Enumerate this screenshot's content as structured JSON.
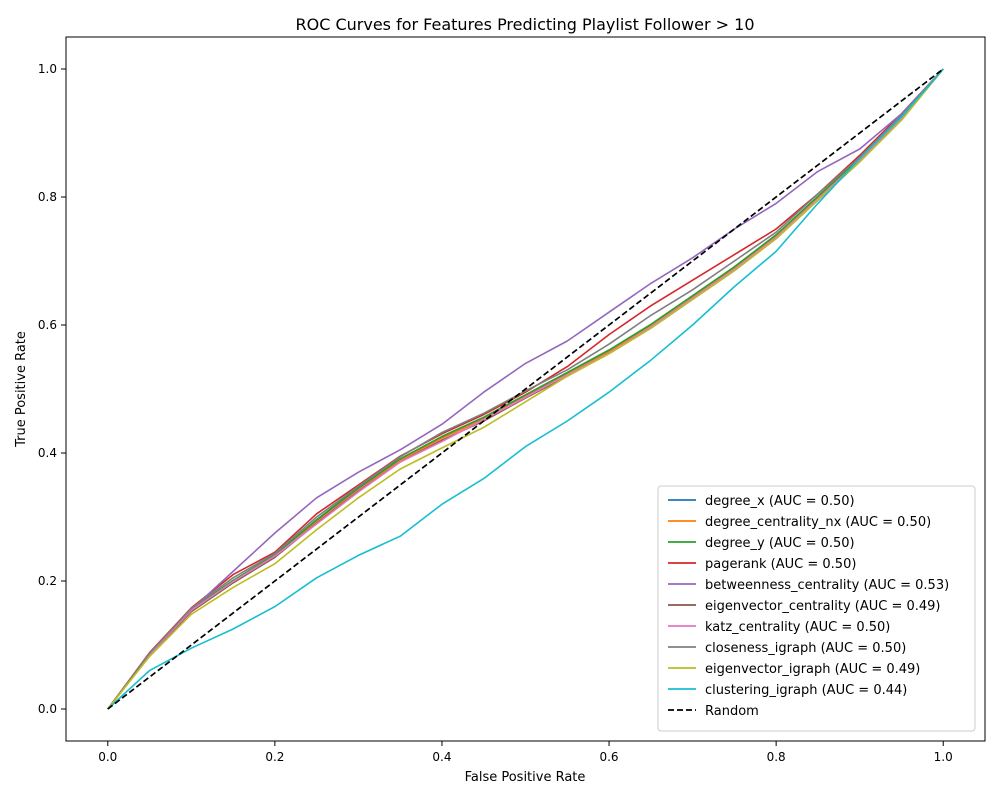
{
  "chart_data": {
    "type": "line",
    "title": "ROC Curves for Features Predicting Playlist Follower > 10",
    "xlabel": "False Positive Rate",
    "ylabel": "True Positive Rate",
    "xlim": [
      -0.05,
      1.05
    ],
    "ylim": [
      -0.05,
      1.05
    ],
    "xticks": [
      "0.0",
      "0.2",
      "0.4",
      "0.6",
      "0.8",
      "1.0"
    ],
    "yticks": [
      "0.0",
      "0.2",
      "0.4",
      "0.6",
      "0.8",
      "1.0"
    ],
    "grid": false,
    "legend_position": "lower-right",
    "series": [
      {
        "name": "degree_x (AUC = 0.50)",
        "color": "#1f77b4",
        "dashed": false,
        "x": [
          0,
          0.05,
          0.1,
          0.15,
          0.2,
          0.25,
          0.3,
          0.35,
          0.4,
          0.45,
          0.5,
          0.55,
          0.6,
          0.65,
          0.7,
          0.75,
          0.8,
          0.85,
          0.9,
          0.95,
          1.0
        ],
        "y": [
          0,
          0.085,
          0.155,
          0.2,
          0.24,
          0.295,
          0.345,
          0.39,
          0.425,
          0.455,
          0.49,
          0.525,
          0.56,
          0.6,
          0.645,
          0.69,
          0.74,
          0.8,
          0.86,
          0.925,
          1.0
        ]
      },
      {
        "name": "degree_centrality_nx (AUC = 0.50)",
        "color": "#ff7f0e",
        "dashed": false,
        "x": [
          0,
          0.05,
          0.1,
          0.15,
          0.2,
          0.25,
          0.3,
          0.35,
          0.4,
          0.45,
          0.5,
          0.55,
          0.6,
          0.65,
          0.7,
          0.75,
          0.8,
          0.85,
          0.9,
          0.95,
          1.0
        ],
        "y": [
          0,
          0.084,
          0.153,
          0.198,
          0.238,
          0.292,
          0.342,
          0.388,
          0.423,
          0.453,
          0.488,
          0.523,
          0.558,
          0.598,
          0.643,
          0.688,
          0.738,
          0.798,
          0.858,
          0.923,
          1.0
        ]
      },
      {
        "name": "degree_y (AUC = 0.50)",
        "color": "#2ca02c",
        "dashed": false,
        "x": [
          0,
          0.05,
          0.1,
          0.15,
          0.2,
          0.25,
          0.3,
          0.35,
          0.4,
          0.45,
          0.5,
          0.55,
          0.6,
          0.65,
          0.7,
          0.75,
          0.8,
          0.85,
          0.9,
          0.95,
          1.0
        ],
        "y": [
          0,
          0.086,
          0.156,
          0.201,
          0.241,
          0.296,
          0.346,
          0.391,
          0.426,
          0.456,
          0.491,
          0.526,
          0.561,
          0.601,
          0.646,
          0.691,
          0.741,
          0.801,
          0.861,
          0.926,
          1.0
        ]
      },
      {
        "name": "pagerank (AUC = 0.50)",
        "color": "#d62728",
        "dashed": false,
        "x": [
          0,
          0.05,
          0.1,
          0.15,
          0.2,
          0.25,
          0.3,
          0.35,
          0.4,
          0.45,
          0.5,
          0.55,
          0.6,
          0.65,
          0.7,
          0.75,
          0.8,
          0.85,
          0.9,
          0.95,
          1.0
        ],
        "y": [
          0,
          0.088,
          0.158,
          0.21,
          0.245,
          0.305,
          0.35,
          0.395,
          0.43,
          0.46,
          0.495,
          0.535,
          0.585,
          0.63,
          0.67,
          0.71,
          0.75,
          0.805,
          0.865,
          0.93,
          1.0
        ]
      },
      {
        "name": "betweenness_centrality (AUC = 0.53)",
        "color": "#9467bd",
        "dashed": false,
        "x": [
          0,
          0.05,
          0.1,
          0.15,
          0.2,
          0.25,
          0.3,
          0.35,
          0.4,
          0.45,
          0.5,
          0.55,
          0.6,
          0.65,
          0.7,
          0.75,
          0.8,
          0.85,
          0.9,
          0.95,
          1.0
        ],
        "y": [
          0,
          0.085,
          0.155,
          0.215,
          0.275,
          0.33,
          0.37,
          0.405,
          0.445,
          0.495,
          0.54,
          0.575,
          0.62,
          0.665,
          0.705,
          0.75,
          0.79,
          0.84,
          0.875,
          0.93,
          1.0
        ]
      },
      {
        "name": "eigenvector_centrality (AUC = 0.49)",
        "color": "#8c564b",
        "dashed": false,
        "x": [
          0,
          0.05,
          0.1,
          0.15,
          0.2,
          0.25,
          0.3,
          0.35,
          0.4,
          0.45,
          0.5,
          0.55,
          0.6,
          0.65,
          0.7,
          0.75,
          0.8,
          0.85,
          0.9,
          0.95,
          1.0
        ],
        "y": [
          0,
          0.084,
          0.152,
          0.197,
          0.237,
          0.29,
          0.34,
          0.386,
          0.42,
          0.45,
          0.486,
          0.52,
          0.556,
          0.595,
          0.64,
          0.685,
          0.735,
          0.795,
          0.855,
          0.921,
          1.0
        ]
      },
      {
        "name": "katz_centrality (AUC = 0.50)",
        "color": "#e377c2",
        "dashed": false,
        "x": [
          0,
          0.05,
          0.1,
          0.15,
          0.2,
          0.25,
          0.3,
          0.35,
          0.4,
          0.45,
          0.5,
          0.55,
          0.6,
          0.65,
          0.7,
          0.75,
          0.8,
          0.85,
          0.9,
          0.95,
          1.0
        ],
        "y": [
          0,
          0.085,
          0.154,
          0.199,
          0.239,
          0.289,
          0.339,
          0.386,
          0.418,
          0.452,
          0.487,
          0.522,
          0.556,
          0.597,
          0.642,
          0.687,
          0.737,
          0.797,
          0.857,
          0.922,
          1.0
        ]
      },
      {
        "name": "closeness_igraph (AUC = 0.50)",
        "color": "#7f7f7f",
        "dashed": false,
        "x": [
          0,
          0.05,
          0.1,
          0.15,
          0.2,
          0.25,
          0.3,
          0.35,
          0.4,
          0.45,
          0.5,
          0.55,
          0.6,
          0.65,
          0.7,
          0.75,
          0.8,
          0.85,
          0.9,
          0.95,
          1.0
        ],
        "y": [
          0,
          0.087,
          0.157,
          0.205,
          0.243,
          0.3,
          0.348,
          0.394,
          0.432,
          0.462,
          0.497,
          0.53,
          0.57,
          0.615,
          0.655,
          0.7,
          0.745,
          0.805,
          0.862,
          0.928,
          1.0
        ]
      },
      {
        "name": "eigenvector_igraph (AUC = 0.49)",
        "color": "#bcbd22",
        "dashed": false,
        "x": [
          0,
          0.05,
          0.1,
          0.15,
          0.2,
          0.25,
          0.3,
          0.35,
          0.4,
          0.45,
          0.5,
          0.55,
          0.6,
          0.65,
          0.7,
          0.75,
          0.8,
          0.85,
          0.9,
          0.95,
          1.0
        ],
        "y": [
          0,
          0.082,
          0.148,
          0.19,
          0.227,
          0.28,
          0.33,
          0.375,
          0.408,
          0.44,
          0.48,
          0.52,
          0.555,
          0.595,
          0.64,
          0.685,
          0.735,
          0.795,
          0.855,
          0.92,
          1.0
        ]
      },
      {
        "name": "clustering_igraph (AUC = 0.44)",
        "color": "#17becf",
        "dashed": false,
        "x": [
          0,
          0.05,
          0.1,
          0.15,
          0.2,
          0.25,
          0.3,
          0.35,
          0.4,
          0.45,
          0.5,
          0.55,
          0.6,
          0.65,
          0.7,
          0.75,
          0.8,
          0.85,
          0.9,
          0.95,
          1.0
        ],
        "y": [
          0,
          0.06,
          0.095,
          0.125,
          0.16,
          0.205,
          0.24,
          0.27,
          0.32,
          0.36,
          0.41,
          0.45,
          0.495,
          0.545,
          0.6,
          0.66,
          0.715,
          0.79,
          0.86,
          0.925,
          1.0
        ]
      },
      {
        "name": "Random",
        "color": "#000000",
        "dashed": true,
        "x": [
          0,
          1
        ],
        "y": [
          0,
          1
        ]
      }
    ]
  }
}
